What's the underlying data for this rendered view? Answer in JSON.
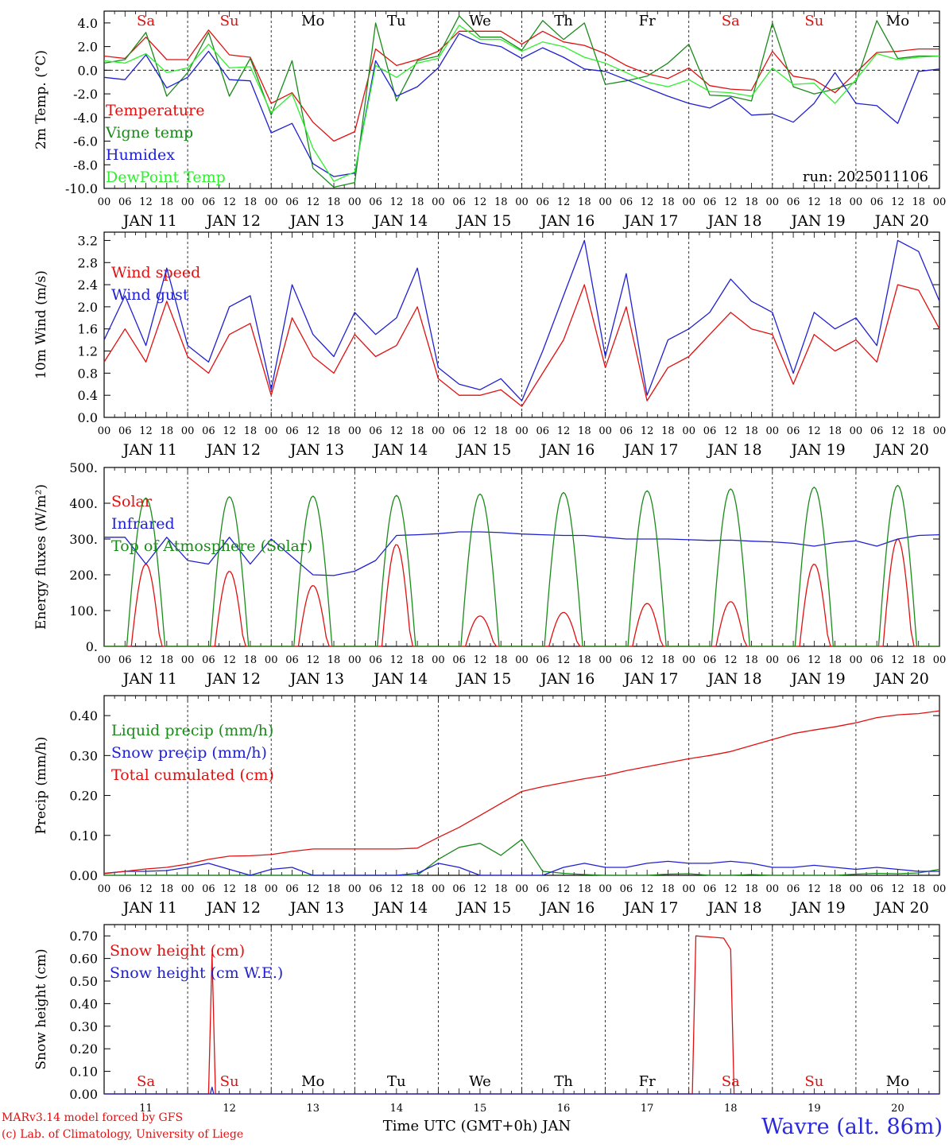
{
  "run_label": "run: 2025011106",
  "days": [
    "JAN 11",
    "JAN 12",
    "JAN 13",
    "JAN 14",
    "JAN 15",
    "JAN 16",
    "JAN 17",
    "JAN 18",
    "JAN 19",
    "JAN 20"
  ],
  "weekdays": [
    "Sa",
    "Su",
    "Mo",
    "Tu",
    "We",
    "Th",
    "Fr",
    "Sa",
    "Su",
    "Mo"
  ],
  "weekday_colors": [
    "#e01010",
    "#e01010",
    "#000000",
    "#000000",
    "#000000",
    "#000000",
    "#000000",
    "#e01010",
    "#e01010",
    "#000000"
  ],
  "hour_ticks": [
    "00",
    "06",
    "12",
    "18"
  ],
  "day_numbers": [
    "11",
    "12",
    "13",
    "14",
    "15",
    "16",
    "17",
    "18",
    "19",
    "20"
  ],
  "footer": {
    "model": "MARv3.14 model forced by GFS",
    "copyright": "(c) Lab. of Climatology, University of Liege",
    "xlabel": "Time UTC (GMT+0h) JAN",
    "station": "Wavre (alt. 86m)"
  },
  "chart_data": [
    {
      "type": "line",
      "ylabel": "2m Temp. (°C)",
      "ylim": [
        -10,
        5
      ],
      "yticks": [
        "4.0",
        "2.0",
        "0.0",
        "-2.0",
        "-4.0",
        "-6.0",
        "-8.0",
        "-10.0"
      ],
      "ytick_values": [
        4,
        2,
        0,
        -2,
        -4,
        -6,
        -8,
        -10
      ],
      "zero_line": true,
      "x_hours": [
        0,
        6,
        12,
        18,
        24,
        30,
        36,
        42,
        48,
        54,
        60,
        66,
        72,
        78,
        84,
        90,
        96,
        102,
        108,
        114,
        120,
        126,
        132,
        138,
        144,
        150,
        156,
        162,
        168,
        174,
        180,
        186,
        192,
        198,
        204,
        210,
        216,
        222,
        228,
        234,
        240
      ],
      "series": [
        {
          "name": "Temperature",
          "color": "#e01010",
          "values": [
            1.2,
            1.0,
            2.8,
            0.9,
            0.9,
            3.4,
            1.3,
            1.1,
            -2.8,
            -1.9,
            -4.4,
            -6.0,
            -5.2,
            1.8,
            0.4,
            0.9,
            1.6,
            3.3,
            3.3,
            3.3,
            2.2,
            3.3,
            2.4,
            2.1,
            1.4,
            0.4,
            -0.3,
            -0.7,
            0.2,
            -1.3,
            -1.6,
            -1.7,
            1.6,
            -0.5,
            -0.8,
            -1.9,
            -0.2,
            1.5,
            1.6,
            1.8,
            1.8
          ]
        },
        {
          "name": "Vigne temp",
          "color": "#1a8a1a",
          "values": [
            0.6,
            0.9,
            3.2,
            -2.2,
            -0.2,
            3.2,
            -2.2,
            1.0,
            -3.8,
            0.8,
            -8.3,
            -9.9,
            -9.5,
            4.0,
            -2.6,
            0.8,
            1.2,
            4.6,
            2.8,
            2.8,
            1.7,
            4.2,
            2.6,
            4.0,
            -1.2,
            -0.9,
            -0.5,
            0.6,
            2.2,
            -2.1,
            -2.2,
            -2.6,
            4.0,
            -1.4,
            -2.0,
            -1.6,
            -1.0,
            4.2,
            1.0,
            1.2,
            1.2
          ]
        },
        {
          "name": "Humidex",
          "color": "#2020d0",
          "values": [
            -0.6,
            -0.8,
            1.3,
            -1.5,
            -0.6,
            1.6,
            -0.8,
            -0.9,
            -5.3,
            -4.5,
            -7.9,
            -9.0,
            -8.7,
            0.8,
            -2.2,
            -1.4,
            0.2,
            3.1,
            2.3,
            2.0,
            1.0,
            1.9,
            1.1,
            0.1,
            -0.1,
            -0.8,
            -1.5,
            -2.2,
            -2.8,
            -3.2,
            -2.3,
            -3.8,
            -3.7,
            -4.4,
            -2.8,
            -0.2,
            -2.8,
            -3.0,
            -4.5,
            -0.1,
            0.1
          ]
        },
        {
          "name": "DewPoint Temp",
          "color": "#30ee30",
          "values": [
            0.8,
            0.6,
            1.4,
            -0.2,
            0.2,
            2.2,
            0.2,
            0.3,
            -3.6,
            -2.0,
            -6.6,
            -9.4,
            -8.6,
            0.4,
            -0.6,
            0.6,
            1.0,
            3.8,
            2.6,
            2.6,
            1.6,
            2.4,
            2.0,
            1.1,
            0.6,
            -0.2,
            -1.0,
            -1.4,
            -0.8,
            -1.8,
            -1.9,
            -2.2,
            0.2,
            -1.2,
            -1.1,
            -2.8,
            -0.8,
            1.4,
            0.9,
            1.1,
            1.2
          ]
        }
      ]
    },
    {
      "type": "line",
      "ylabel": "10m Wind (m/s)",
      "ylim": [
        0,
        3.35
      ],
      "yticks": [
        "3.2",
        "2.8",
        "2.4",
        "2.0",
        "1.6",
        "1.2",
        "0.8",
        "0.4",
        "0.0"
      ],
      "ytick_values": [
        3.2,
        2.8,
        2.4,
        2.0,
        1.6,
        1.2,
        0.8,
        0.4,
        0.0
      ],
      "x_hours": [
        0,
        6,
        12,
        18,
        24,
        30,
        36,
        42,
        48,
        54,
        60,
        66,
        72,
        78,
        84,
        90,
        96,
        102,
        108,
        114,
        120,
        126,
        132,
        138,
        144,
        150,
        156,
        162,
        168,
        174,
        180,
        186,
        192,
        198,
        204,
        210,
        216,
        222,
        228,
        234,
        240
      ],
      "series": [
        {
          "name": "Wind speed",
          "color": "#e01010",
          "values": [
            1.0,
            1.6,
            1.0,
            2.1,
            1.1,
            0.8,
            1.5,
            1.7,
            0.4,
            1.8,
            1.1,
            0.8,
            1.5,
            1.1,
            1.3,
            2.0,
            0.7,
            0.4,
            0.4,
            0.5,
            0.2,
            0.8,
            1.4,
            2.4,
            0.9,
            2.0,
            0.3,
            0.9,
            1.1,
            1.5,
            1.9,
            1.6,
            1.5,
            0.6,
            1.5,
            1.2,
            1.4,
            1.0,
            2.4,
            2.3,
            1.6
          ]
        },
        {
          "name": "Wind gust",
          "color": "#2020d0",
          "values": [
            1.4,
            2.2,
            1.3,
            2.7,
            1.3,
            1.0,
            2.0,
            2.2,
            0.5,
            2.4,
            1.5,
            1.1,
            1.9,
            1.5,
            1.8,
            2.7,
            0.9,
            0.6,
            0.5,
            0.7,
            0.3,
            1.2,
            2.2,
            3.2,
            1.1,
            2.6,
            0.4,
            1.4,
            1.6,
            1.9,
            2.5,
            2.1,
            1.9,
            0.8,
            1.9,
            1.6,
            1.8,
            1.3,
            3.2,
            3.0,
            2.1
          ]
        }
      ]
    },
    {
      "type": "line",
      "ylabel": "Energy fluxes (W/m²)",
      "ylim": [
        0,
        500
      ],
      "yticks": [
        "500.",
        "400.",
        "300.",
        "200.",
        "100.",
        "0."
      ],
      "ytick_values": [
        500,
        400,
        300,
        200,
        100,
        0
      ],
      "series": [
        {
          "name": "Solar",
          "color": "#e01010",
          "daily_peaks": [
            230,
            210,
            170,
            285,
            85,
            95,
            120,
            125,
            230,
            300
          ]
        },
        {
          "name": "Infrared",
          "color": "#2020d0",
          "x_hours": [
            0,
            6,
            12,
            18,
            24,
            30,
            36,
            42,
            48,
            54,
            60,
            66,
            72,
            78,
            84,
            90,
            96,
            102,
            108,
            114,
            120,
            126,
            132,
            138,
            144,
            150,
            156,
            162,
            168,
            174,
            180,
            186,
            192,
            198,
            204,
            210,
            216,
            222,
            228,
            234,
            240
          ],
          "values": [
            305,
            305,
            230,
            305,
            240,
            230,
            305,
            230,
            300,
            250,
            200,
            198,
            210,
            240,
            310,
            312,
            315,
            320,
            320,
            318,
            314,
            312,
            310,
            310,
            305,
            300,
            300,
            300,
            298,
            296,
            297,
            294,
            292,
            288,
            280,
            290,
            295,
            280,
            300,
            310,
            312
          ]
        },
        {
          "name": "Top of Atmosphere (Solar)",
          "color": "#1a8a1a",
          "daily_peaks": [
            415,
            418,
            420,
            422,
            426,
            430,
            435,
            440,
            445,
            450
          ]
        }
      ]
    },
    {
      "type": "line",
      "ylabel": "Precip (mm/h)",
      "ylim": [
        0,
        0.45
      ],
      "yticks": [
        "0.40",
        "0.30",
        "0.20",
        "0.10",
        "0.00"
      ],
      "ytick_values": [
        0.4,
        0.3,
        0.2,
        0.1,
        0.0
      ],
      "x_hours": [
        0,
        6,
        12,
        18,
        24,
        30,
        36,
        42,
        48,
        54,
        60,
        66,
        72,
        78,
        84,
        90,
        96,
        102,
        108,
        114,
        120,
        126,
        132,
        138,
        144,
        150,
        156,
        162,
        168,
        174,
        180,
        186,
        192,
        198,
        204,
        210,
        216,
        222,
        228,
        234,
        240
      ],
      "series": [
        {
          "name": "Liquid precip (mm/h)",
          "color": "#1a8a1a",
          "values": [
            0,
            0,
            0,
            0,
            0,
            0,
            0,
            0,
            0,
            0,
            0,
            0,
            0,
            0,
            0,
            0,
            0.04,
            0.07,
            0.08,
            0.05,
            0.09,
            0.01,
            0.005,
            0.002,
            0,
            0,
            0,
            0.003,
            0.004,
            0,
            0,
            0.002,
            0,
            0,
            0,
            0,
            0.003,
            0.005,
            0.004,
            0.006,
            0.015
          ]
        },
        {
          "name": "Snow precip (mm/h)",
          "color": "#2020d0",
          "values": [
            0.005,
            0.01,
            0.01,
            0.012,
            0.02,
            0.03,
            0.015,
            0,
            0.015,
            0.02,
            0,
            0,
            0,
            0,
            0,
            0.005,
            0.03,
            0.02,
            0,
            0,
            0,
            0,
            0.02,
            0.03,
            0.02,
            0.02,
            0.03,
            0.035,
            0.03,
            0.03,
            0.035,
            0.03,
            0.02,
            0.02,
            0.025,
            0.02,
            0.015,
            0.02,
            0.015,
            0.01,
            0.01
          ]
        },
        {
          "name": "Total cumulated (cm)",
          "color": "#e01010",
          "values": [
            0.004,
            0.01,
            0.016,
            0.02,
            0.028,
            0.04,
            0.048,
            0.049,
            0.052,
            0.06,
            0.066,
            0.066,
            0.066,
            0.066,
            0.066,
            0.068,
            0.095,
            0.12,
            0.15,
            0.18,
            0.21,
            0.222,
            0.232,
            0.242,
            0.25,
            0.262,
            0.272,
            0.282,
            0.292,
            0.3,
            0.31,
            0.325,
            0.34,
            0.355,
            0.364,
            0.372,
            0.382,
            0.395,
            0.402,
            0.405,
            0.412
          ]
        }
      ]
    },
    {
      "type": "line",
      "ylabel": "Snow height (cm)",
      "ylim": [
        0,
        0.75
      ],
      "yticks": [
        "0.70",
        "0.60",
        "0.50",
        "0.40",
        "0.30",
        "0.20",
        "0.10",
        "0.00"
      ],
      "ytick_values": [
        0.7,
        0.6,
        0.5,
        0.4,
        0.3,
        0.2,
        0.1,
        0.0
      ],
      "series": [
        {
          "name": "Snow height (cm)",
          "color": "#e01010"
        },
        {
          "name": "Snow height (cm W.E.)",
          "color": "#2020d0"
        }
      ]
    }
  ]
}
